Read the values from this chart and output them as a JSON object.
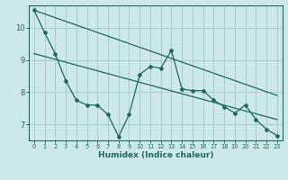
{
  "xlabel": "Humidex (Indice chaleur)",
  "ylabel": "",
  "bg_color": "#cce8e8",
  "line_color": "#1a6b60",
  "grid_color": "#a8cccc",
  "xlim": [
    -0.5,
    23.5
  ],
  "ylim": [
    6.5,
    10.7
  ],
  "yticks": [
    7,
    8,
    9,
    10
  ],
  "xticks": [
    0,
    1,
    2,
    3,
    4,
    5,
    6,
    7,
    8,
    9,
    10,
    11,
    12,
    13,
    14,
    15,
    16,
    17,
    18,
    19,
    20,
    21,
    22,
    23
  ],
  "line1_x": [
    0,
    1,
    2,
    3,
    4,
    5,
    6,
    7,
    8,
    9,
    10,
    11,
    12,
    13,
    14,
    15,
    16,
    17,
    18,
    19,
    20,
    21,
    22,
    23
  ],
  "line1_y": [
    10.55,
    9.85,
    9.2,
    8.35,
    7.75,
    7.6,
    7.6,
    7.3,
    6.62,
    7.3,
    8.55,
    8.8,
    8.75,
    9.3,
    8.1,
    8.05,
    8.05,
    7.75,
    7.55,
    7.35,
    7.6,
    7.15,
    6.85,
    6.65
  ],
  "line2_x": [
    0,
    23
  ],
  "line2_y": [
    10.55,
    7.9
  ],
  "line3_x": [
    0,
    23
  ],
  "line3_y": [
    9.2,
    7.15
  ]
}
